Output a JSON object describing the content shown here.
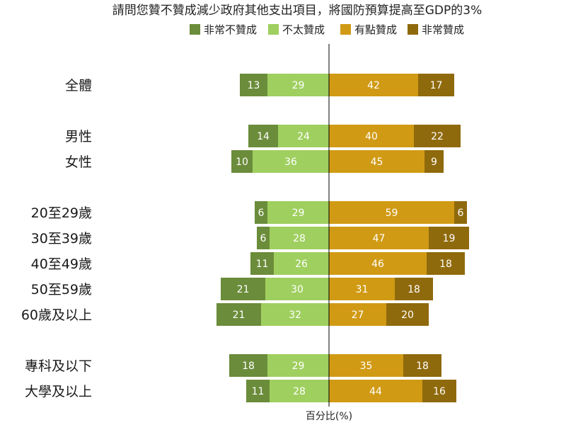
{
  "chart_data": {
    "type": "bar",
    "orientation": "horizontal",
    "stacked": "diverging",
    "title": "請問您贊不贊成減少政府其他支出項目，將國防預算提高至GDP的3%",
    "xlabel": "百分比(%)",
    "legend_placement": "top",
    "series": [
      {
        "name": "非常不贊成",
        "color": "#6b8c3a",
        "side": "negative"
      },
      {
        "name": "不太贊成",
        "color": "#9fcf5f",
        "side": "negative"
      },
      {
        "name": "有點贊成",
        "color": "#d09a14",
        "side": "positive"
      },
      {
        "name": "非常贊成",
        "color": "#8f6a0c",
        "side": "positive"
      }
    ],
    "groups": [
      [
        {
          "category": "全體",
          "values": [
            13,
            29,
            42,
            17
          ]
        }
      ],
      [
        {
          "category": "男性",
          "values": [
            14,
            24,
            40,
            22
          ]
        },
        {
          "category": "女性",
          "values": [
            10,
            36,
            45,
            9
          ]
        }
      ],
      [
        {
          "category": "20至29歲",
          "values": [
            6,
            29,
            59,
            6
          ]
        },
        {
          "category": "30至39歲",
          "values": [
            6,
            28,
            47,
            19
          ]
        },
        {
          "category": "40至49歲",
          "values": [
            11,
            26,
            46,
            18
          ]
        },
        {
          "category": "50至59歲",
          "values": [
            21,
            30,
            31,
            18
          ]
        },
        {
          "category": "60歲及以上",
          "values": [
            21,
            32,
            27,
            20
          ]
        }
      ],
      [
        {
          "category": "專科及以下",
          "values": [
            18,
            29,
            35,
            18
          ]
        },
        {
          "category": "大學及以上",
          "values": [
            11,
            28,
            44,
            16
          ]
        }
      ]
    ]
  }
}
